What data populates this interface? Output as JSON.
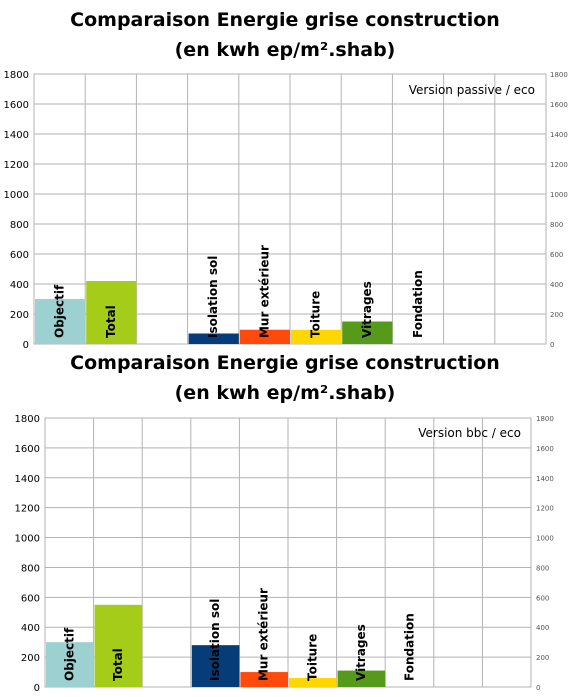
{
  "chart_data": [
    {
      "type": "bar",
      "title": "Comparaison Energie grise construction",
      "subtitle": "(en kwh ep/m².shab)",
      "annotation": "Version passive / eco",
      "categories": [
        "Objectif",
        "Total",
        "",
        "Isolation sol",
        "Mur extérieur",
        "Toiture",
        "Vitrages",
        "Fondation",
        "",
        ""
      ],
      "values": [
        300,
        420,
        null,
        70,
        95,
        95,
        150,
        0,
        null,
        null
      ],
      "colors": [
        "#9dd0d0",
        "#a6cc1a",
        "#ffffff",
        "#063d78",
        "#fe4a0d",
        "#fed700",
        "#569a1c",
        "#ffffff",
        "#ffffff",
        "#ffffff"
      ],
      "ylim": [
        0,
        1800
      ],
      "yticks": [
        0,
        200,
        400,
        600,
        800,
        1000,
        1200,
        1400,
        1600,
        1800
      ],
      "grid": true,
      "annotation_placement": "top-right"
    },
    {
      "type": "bar",
      "title": "Comparaison Energie grise construction",
      "subtitle": "(en kwh ep/m².shab)",
      "annotation": "Version bbc / eco",
      "categories": [
        "Objectif",
        "Total",
        "",
        "Isolation sol",
        "Mur extérieur",
        "Toiture",
        "Vitrages",
        "Fondation",
        "",
        ""
      ],
      "values": [
        300,
        550,
        null,
        280,
        100,
        60,
        110,
        0,
        null,
        null
      ],
      "colors": [
        "#9dd0d0",
        "#a6cc1a",
        "#ffffff",
        "#063d78",
        "#fe4a0d",
        "#fed700",
        "#569a1c",
        "#ffffff",
        "#ffffff",
        "#ffffff"
      ],
      "ylim": [
        0,
        1800
      ],
      "yticks": [
        0,
        200,
        400,
        600,
        800,
        1000,
        1200,
        1400,
        1600,
        1800
      ],
      "grid": true,
      "annotation_placement": "top-right"
    }
  ]
}
